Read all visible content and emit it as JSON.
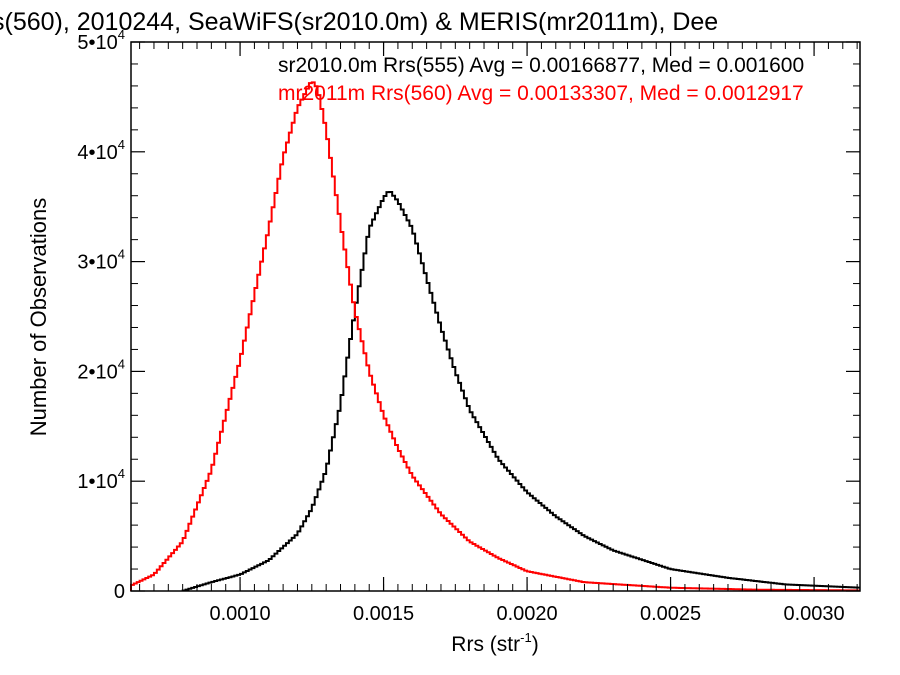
{
  "colors": {
    "series_1": "#000000",
    "series_2": "#ff0000",
    "background": "#ffffff"
  },
  "chart_data": {
    "type": "line",
    "title": "s(560), 2010244, SeaWiFS(sr2010.0m) & MERIS(mr2011m), Dee",
    "xlabel_main": "Rrs (str",
    "xlabel_sup": "-1",
    "xlabel_close": ")",
    "ylabel": "Number of Observations",
    "xlim": [
      0.00062,
      0.00316
    ],
    "ylim": [
      0,
      50000
    ],
    "x_ticks": [
      {
        "value": 0.001,
        "label": "0.0010"
      },
      {
        "value": 0.0015,
        "label": "0.0015"
      },
      {
        "value": 0.002,
        "label": "0.0020"
      },
      {
        "value": 0.0025,
        "label": "0.0025"
      },
      {
        "value": 0.003,
        "label": "0.0030"
      }
    ],
    "y_ticks": [
      {
        "value": 0,
        "label": "0",
        "sup": ""
      },
      {
        "value": 10000,
        "label": "1•10",
        "sup": "4"
      },
      {
        "value": 20000,
        "label": "2•10",
        "sup": "4"
      },
      {
        "value": 30000,
        "label": "3•10",
        "sup": "4"
      },
      {
        "value": 40000,
        "label": "4•10",
        "sup": "4"
      },
      {
        "value": 50000,
        "label": "5•10",
        "sup": "4"
      }
    ],
    "grid": false,
    "legend_position": "top",
    "series": [
      {
        "label": "sr2010.0m Rrs(555) Avg = 0.00166877, Med = 0.001600",
        "color": "#000000",
        "x": [
          0.0008,
          0.0009,
          0.001,
          0.0011,
          0.0012,
          0.00125,
          0.0013,
          0.00135,
          0.0014,
          0.00145,
          0.0015,
          0.00152,
          0.00155,
          0.0016,
          0.00165,
          0.0017,
          0.00175,
          0.0018,
          0.0019,
          0.002,
          0.0021,
          0.0022,
          0.0023,
          0.0025,
          0.0027,
          0.0029,
          0.00316
        ],
        "y": [
          0,
          800,
          1500,
          2800,
          5200,
          7500,
          11000,
          17000,
          25500,
          33000,
          35800,
          36500,
          35500,
          33000,
          28500,
          24000,
          20000,
          16500,
          12000,
          9000,
          6800,
          5000,
          3700,
          2000,
          1200,
          600,
          300
        ]
      },
      {
        "label": "mr2011m Rrs(560) Avg = 0.00133307, Med = 0.0012917",
        "color": "#ff0000",
        "x": [
          0.00062,
          0.0007,
          0.0008,
          0.0009,
          0.001,
          0.00105,
          0.0011,
          0.00115,
          0.0012,
          0.00125,
          0.00127,
          0.0013,
          0.00135,
          0.0014,
          0.00145,
          0.0015,
          0.00155,
          0.0016,
          0.0017,
          0.0018,
          0.0019,
          0.002,
          0.0022,
          0.0025,
          0.0028,
          0.00316
        ],
        "y": [
          500,
          1500,
          4500,
          11000,
          21000,
          27000,
          33000,
          39500,
          44000,
          46500,
          45800,
          42000,
          33500,
          25500,
          20000,
          16000,
          13000,
          10500,
          7000,
          4500,
          3000,
          1800,
          800,
          300,
          120,
          50
        ]
      }
    ]
  }
}
